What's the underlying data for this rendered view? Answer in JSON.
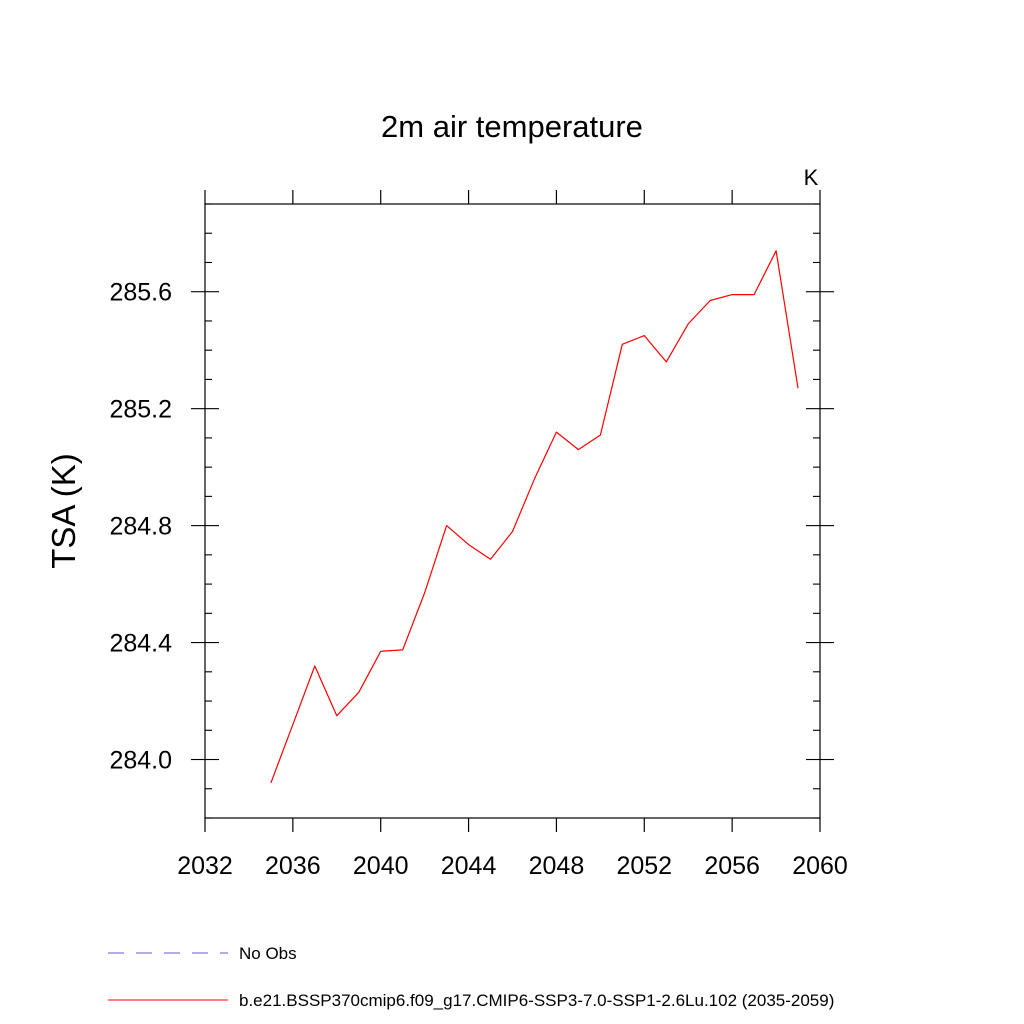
{
  "chart_data": {
    "type": "line",
    "title": "2m air temperature",
    "units_label": "K",
    "xlabel": "",
    "ylabel": "TSA  (K)",
    "xlim": [
      2032,
      2060
    ],
    "ylim": [
      283.8,
      285.9
    ],
    "x_major_ticks": [
      2032,
      2036,
      2040,
      2044,
      2048,
      2052,
      2056,
      2060
    ],
    "x_tick_labels": [
      "2032",
      "2036",
      "2040",
      "2044",
      "2048",
      "2052",
      "2056",
      "2060"
    ],
    "y_major_ticks": [
      284.0,
      284.4,
      284.8,
      285.2,
      285.6
    ],
    "y_tick_labels": [
      "284.0",
      "284.4",
      "284.8",
      "285.2",
      "285.6"
    ],
    "grid": false,
    "legend_position": "bottom",
    "series": [
      {
        "name": "b.e21.BSSP370cmip6.f09_g17.CMIP6-SSP3-7.0-SSP1-2.6Lu.102 (2035-2059)",
        "color": "#ff0000",
        "style": "solid",
        "x": [
          2035,
          2036,
          2037,
          2038,
          2039,
          2040,
          2041,
          2042,
          2043,
          2044,
          2045,
          2046,
          2047,
          2048,
          2049,
          2050,
          2051,
          2052,
          2053,
          2054,
          2055,
          2056,
          2057,
          2058,
          2059
        ],
        "y": [
          283.92,
          284.12,
          284.32,
          284.15,
          284.23,
          284.37,
          284.375,
          284.57,
          284.8,
          284.735,
          284.685,
          284.78,
          284.96,
          285.12,
          285.06,
          285.11,
          285.42,
          285.45,
          285.36,
          285.49,
          285.57,
          285.59,
          285.59,
          285.74,
          285.27
        ]
      }
    ],
    "legend": [
      {
        "label": "No Obs",
        "color": "#6a5acd",
        "style": "dashed"
      },
      {
        "label": "b.e21.BSSP370cmip6.f09_g17.CMIP6-SSP3-7.0-SSP1-2.6Lu.102 (2035-2059)",
        "color": "#ff0000",
        "style": "solid"
      }
    ]
  }
}
